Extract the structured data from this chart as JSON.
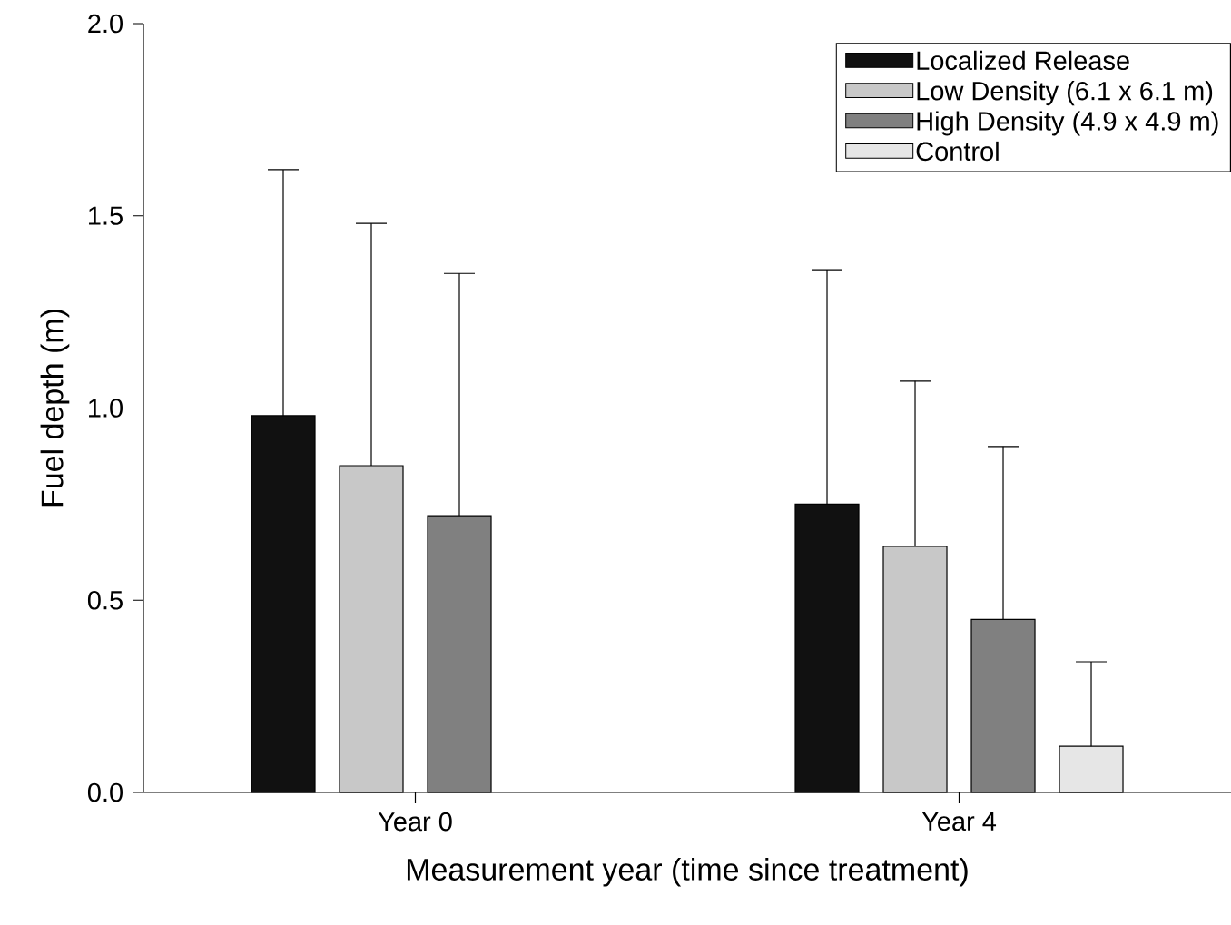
{
  "chart_data": {
    "type": "bar",
    "xlabel": "Measurement year (time since treatment)",
    "ylabel": "Fuel depth (m)",
    "categories": [
      "Year 0",
      "Year 4"
    ],
    "ylim": [
      0,
      2.0
    ],
    "yticks": [
      {
        "value": 0,
        "label": "0.0"
      },
      0.5,
      {
        "value": 1,
        "label": "1.0"
      },
      1.5,
      {
        "value": 2,
        "label": "2.0"
      }
    ],
    "legend": "top right",
    "series": [
      {
        "name": "Localized Release",
        "color": "#111111",
        "values": [
          0.98,
          0.75
        ],
        "errors": [
          [
            0.98,
            1.62
          ],
          [
            0.75,
            1.36
          ]
        ]
      },
      {
        "name": "Low Density (6.1 x 6.1 m)",
        "color": "#c8c8c8",
        "values": [
          0.85,
          0.64
        ],
        "errors": [
          [
            0.85,
            1.48
          ],
          [
            0.64,
            1.07
          ]
        ]
      },
      {
        "name": "High Density (4.9 x 4.9 m)",
        "color": "#808080",
        "values": [
          0.72,
          0.45
        ],
        "errors": [
          [
            0.72,
            1.35
          ],
          [
            0.45,
            0.9
          ]
        ]
      },
      {
        "name": "Control",
        "color": "#e6e6e6",
        "values": [
          null,
          0.12
        ],
        "errors": [
          null,
          [
            0.12,
            0.34
          ]
        ]
      }
    ]
  }
}
